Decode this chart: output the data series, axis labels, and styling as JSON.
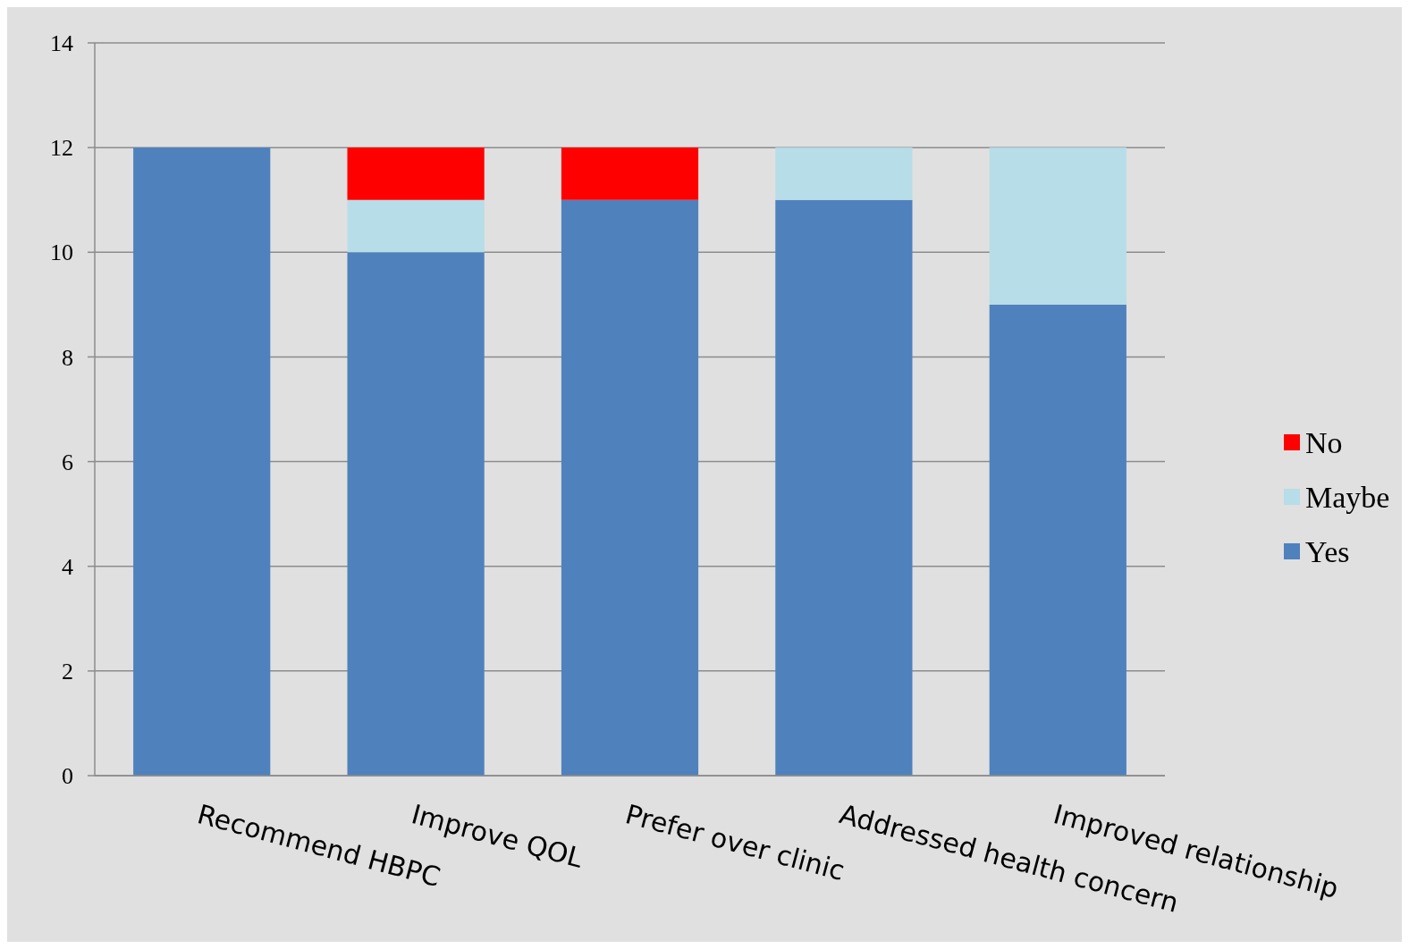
{
  "chart_data": {
    "type": "bar",
    "stacked": true,
    "categories": [
      "Recommend HBPC",
      "Improve QOL",
      "Prefer over clinic",
      "Addressed health concern",
      "Improved relationship"
    ],
    "series": [
      {
        "name": "Yes",
        "color": "#4f81bd",
        "values": [
          12,
          10,
          11,
          11,
          9
        ]
      },
      {
        "name": "Maybe",
        "color": "#b7dde8",
        "values": [
          0,
          1,
          0,
          1,
          3
        ]
      },
      {
        "name": "No",
        "color": "#ff0000",
        "values": [
          0,
          1,
          1,
          0,
          0
        ]
      }
    ],
    "ylim": [
      0,
      14
    ],
    "yticks": [
      0,
      2,
      4,
      6,
      8,
      10,
      12,
      14
    ],
    "grid": "y",
    "legend": "right"
  }
}
